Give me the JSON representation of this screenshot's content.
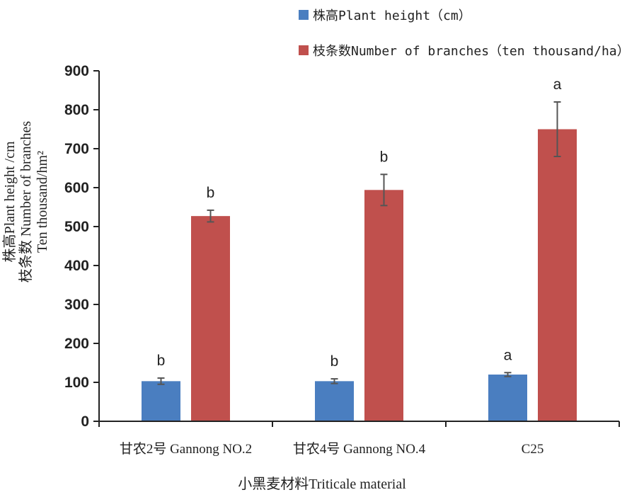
{
  "chart_data": {
    "type": "bar",
    "categories": [
      "甘农2号 Gannong NO.2",
      "甘农4号 Gannong NO.4",
      "C25"
    ],
    "series": [
      {
        "name": "株高Plant height（cm）",
        "color": "#4a7ec0",
        "values": [
          103,
          103,
          120
        ],
        "errors": [
          8,
          6,
          5
        ],
        "labels": [
          "b",
          "b",
          "a"
        ]
      },
      {
        "name": "枝条数Number of branches（ten thousand/ha）",
        "color": "#c0504d",
        "values": [
          527,
          594,
          750
        ],
        "errors": [
          15,
          40,
          70
        ],
        "labels": [
          "b",
          "b",
          "a"
        ]
      }
    ],
    "ylim": [
      0,
      900
    ],
    "yticks": [
      0,
      100,
      200,
      300,
      400,
      500,
      600,
      700,
      800,
      900
    ],
    "xlabel": "小黑麦材料Triticale material",
    "ylabel_lines": [
      "株高Plant height /cm",
      "枝条数 Number of branches",
      "Ten thousand/hm²"
    ],
    "legend_position": "top-right",
    "grid": false
  }
}
